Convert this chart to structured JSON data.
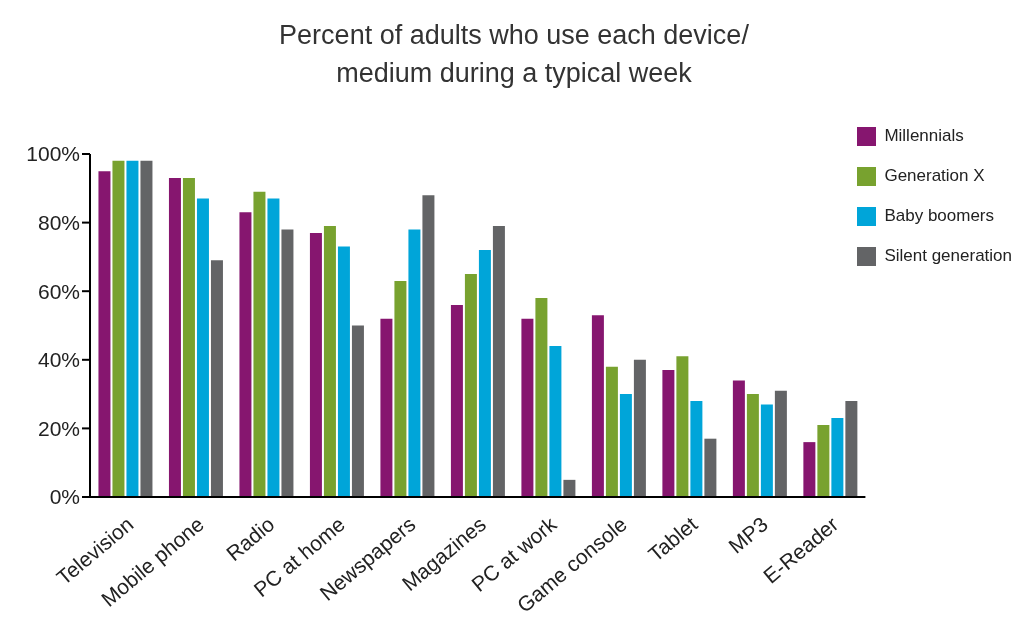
{
  "chart_data": {
    "type": "bar",
    "title": "Percent of adults who use each device/\nmedium during a typical week",
    "categories": [
      "Television",
      "Mobile phone",
      "Radio",
      "PC at home",
      "Newspapers",
      "Magazines",
      "PC at work",
      "Game console",
      "Tablet",
      "MP3",
      "E-Reader"
    ],
    "series": [
      {
        "name": "Millennials",
        "color": "#86166f",
        "values": [
          95,
          93,
          83,
          77,
          52,
          56,
          52,
          53,
          37,
          34,
          16
        ]
      },
      {
        "name": "Generation X",
        "color": "#78a22f",
        "values": [
          98,
          93,
          89,
          79,
          63,
          65,
          58,
          38,
          41,
          30,
          21
        ]
      },
      {
        "name": "Baby boomers",
        "color": "#00a5d9",
        "values": [
          98,
          87,
          87,
          73,
          78,
          72,
          44,
          30,
          28,
          27,
          23
        ]
      },
      {
        "name": "Silent generation",
        "color": "#636466",
        "values": [
          98,
          69,
          78,
          50,
          88,
          79,
          5,
          40,
          17,
          31,
          28
        ]
      }
    ],
    "ylim": [
      0,
      100
    ],
    "yticks": [
      {
        "value": 0,
        "label": "0%"
      },
      {
        "value": 20,
        "label": "20%"
      },
      {
        "value": 40,
        "label": "40%"
      },
      {
        "value": 60,
        "label": "60%"
      },
      {
        "value": 80,
        "label": "80%"
      },
      {
        "value": 100,
        "label": "100%"
      }
    ],
    "grid": false,
    "legend": "top right"
  }
}
